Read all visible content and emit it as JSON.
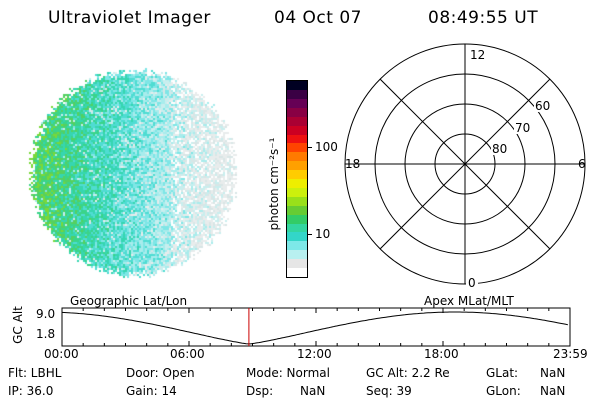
{
  "header": {
    "instrument": "Ultraviolet Imager",
    "date": "04 Oct 07",
    "time": "08:49:55 UT"
  },
  "colorbar": {
    "unit_label": "photon cm⁻²s⁻¹",
    "ticks": [
      "100",
      "10"
    ],
    "colors": [
      "#ffffff",
      "#e6e6e6",
      "#b8f0f0",
      "#7de8e8",
      "#33d6c8",
      "#33d6a0",
      "#33cc66",
      "#66cc33",
      "#99e01a",
      "#ccf00d",
      "#eeee00",
      "#ffcc00",
      "#ffa000",
      "#ff7a00",
      "#ff4400",
      "#ee1111",
      "#cc0022",
      "#aa0033",
      "#880044",
      "#660055",
      "#3a0044",
      "#000022"
    ]
  },
  "polar": {
    "mlt_labels": {
      "top": "12",
      "left": "18",
      "right": "6",
      "bottom": "0"
    },
    "lat_labels": [
      "60",
      "70",
      "80"
    ]
  },
  "timeline": {
    "left_label": "Geographic Lat/Lon",
    "right_label": "Apex MLat/MLT",
    "axis_title": "GC Alt",
    "y_ticks": [
      "9.0",
      "1.8"
    ],
    "x_ticks": [
      "00:00",
      "06:00",
      "12:00",
      "18:00",
      "23:59"
    ],
    "marker_time_hours": 8.83,
    "marker_color": "#cc0000"
  },
  "info": {
    "flt": "Flt: LBHL",
    "door": "Door: Open",
    "mode": "Mode: Normal",
    "gc_alt": "GC Alt: 2.2 Re",
    "glat_label": "GLat:",
    "glat_value": "NaN",
    "ip": "IP: 36.0",
    "gain": "Gain: 14",
    "dsp_label": "Dsp:",
    "dsp_value": "NaN",
    "seq": "Seq: 39",
    "glon_label": "GLon:",
    "glon_value": "NaN"
  }
}
